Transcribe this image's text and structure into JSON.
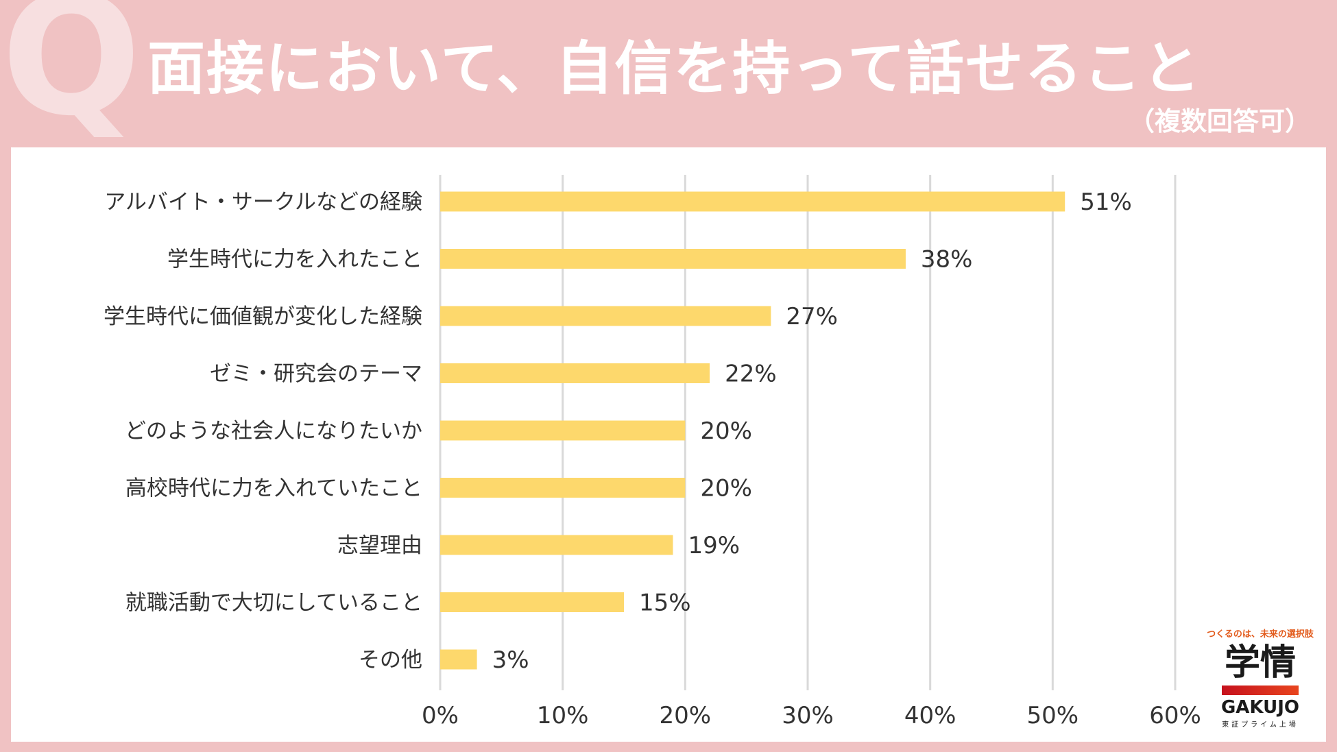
{
  "header": {
    "q_mark": "Q",
    "title": "面接において、自信を持って話せること",
    "subtitle": "（複数回答可）"
  },
  "colors": {
    "background": "#f0c2c3",
    "bar": "#fdd86c",
    "gridline": "#d9d9d9",
    "text": "#333333"
  },
  "chart_data": {
    "type": "bar",
    "orientation": "horizontal",
    "title": "面接において、自信を持って話せること（複数回答可）",
    "categories": [
      "アルバイト・サークルなどの経験",
      "学生時代に力を入れたこと",
      "学生時代に価値観が変化した経験",
      "ゼミ・研究会のテーマ",
      "どのような社会人になりたいか",
      "高校時代に力を入れていたこと",
      "志望理由",
      "就職活動で大切にしていること",
      "その他"
    ],
    "values": [
      51,
      38,
      27,
      22,
      20,
      20,
      19,
      15,
      3
    ],
    "value_labels": [
      "51%",
      "38%",
      "27%",
      "22%",
      "20%",
      "20%",
      "19%",
      "15%",
      "3%"
    ],
    "xlim": [
      0,
      60
    ],
    "xticks": [
      0,
      10,
      20,
      30,
      40,
      50,
      60
    ],
    "xtick_labels": [
      "0%",
      "10%",
      "20%",
      "30%",
      "40%",
      "50%",
      "60%"
    ],
    "grid": true
  },
  "logo": {
    "tagline": "つくるのは、未来の選択肢",
    "name_ja": "学情",
    "name_en": "GAKUJO",
    "listing": "東証プライム上場"
  }
}
